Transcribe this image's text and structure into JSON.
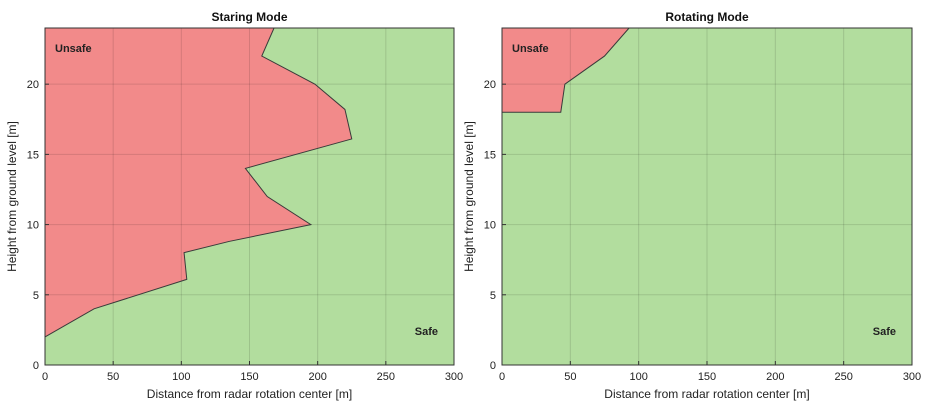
{
  "chart_data": [
    {
      "type": "area",
      "title": "Staring Mode",
      "xlabel": "Distance from radar rotation center [m]",
      "ylabel": "Height from ground level [m]",
      "xlim": [
        0,
        300
      ],
      "ylim": [
        0,
        24
      ],
      "xticks": [
        0,
        50,
        100,
        150,
        200,
        250,
        300
      ],
      "yticks": [
        0,
        5,
        10,
        15,
        20
      ],
      "grid": true,
      "boundary": [
        {
          "x": 0,
          "y": 2
        },
        {
          "x": 36,
          "y": 4
        },
        {
          "x": 104,
          "y": 6.1
        },
        {
          "x": 102,
          "y": 8
        },
        {
          "x": 135,
          "y": 8.8
        },
        {
          "x": 195,
          "y": 10
        },
        {
          "x": 163,
          "y": 12
        },
        {
          "x": 147,
          "y": 14
        },
        {
          "x": 225,
          "y": 16.1
        },
        {
          "x": 220,
          "y": 18.2
        },
        {
          "x": 198,
          "y": 20
        },
        {
          "x": 159,
          "y": 22
        },
        {
          "x": 168,
          "y": 24
        }
      ],
      "regions": [
        {
          "label": "Unsafe",
          "color": "#f28a8a",
          "position": "top-left"
        },
        {
          "label": "Safe",
          "color": "#b2dd9e",
          "position": "bottom-right"
        }
      ],
      "boundary_color": "#3a3a3a"
    },
    {
      "type": "area",
      "title": "Rotating Mode",
      "xlabel": "Distance from radar rotation center [m]",
      "ylabel": "Height from ground level [m]",
      "xlim": [
        0,
        300
      ],
      "ylim": [
        0,
        24
      ],
      "xticks": [
        0,
        50,
        100,
        150,
        200,
        250,
        300
      ],
      "yticks": [
        0,
        5,
        10,
        15,
        20
      ],
      "grid": true,
      "boundary": [
        {
          "x": 0,
          "y": 18
        },
        {
          "x": 43,
          "y": 18
        },
        {
          "x": 46,
          "y": 20
        },
        {
          "x": 75,
          "y": 22
        },
        {
          "x": 93,
          "y": 24
        }
      ],
      "regions": [
        {
          "label": "Unsafe",
          "color": "#f28a8a",
          "position": "top-left"
        },
        {
          "label": "Safe",
          "color": "#b2dd9e",
          "position": "bottom-right"
        }
      ],
      "boundary_color": "#3a3a3a"
    }
  ]
}
